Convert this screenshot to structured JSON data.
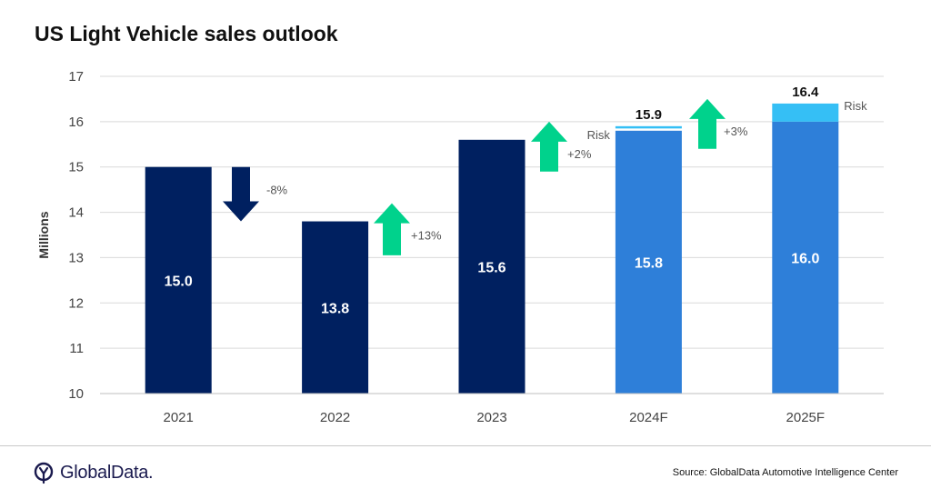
{
  "title": "US Light Vehicle sales outlook",
  "footer": {
    "brand": "GlobalData.",
    "source": "Source: GlobalData Automotive  Intelligence Center"
  },
  "colors": {
    "actual": "#002060",
    "forecast": "#2E7FD9",
    "risk": "#35BFF5",
    "arrow_up": "#00D28C",
    "arrow_down": "#002060"
  },
  "chart_data": {
    "type": "bar",
    "ylabel": "Millions",
    "ylim": [
      10,
      17
    ],
    "yticks": [
      10,
      11,
      12,
      13,
      14,
      15,
      16,
      17
    ],
    "grid": true,
    "categories": [
      "2021",
      "2022",
      "2023",
      "2024F",
      "2025F"
    ],
    "values": [
      15.0,
      13.8,
      15.6,
      15.8,
      16.0
    ],
    "value_labels": [
      "15.0",
      "13.8",
      "15.6",
      "15.8",
      "16.0"
    ],
    "risk": [
      {
        "category": "2024F",
        "from": 15.85,
        "to": 15.9,
        "total_label": "15.9",
        "label": "Risk"
      },
      {
        "category": "2025F",
        "from": 16.0,
        "to": 16.4,
        "total_label": "16.4",
        "label": "Risk"
      }
    ],
    "changes": [
      {
        "after": "2021",
        "direction": "down",
        "label": "-8%"
      },
      {
        "after": "2022",
        "direction": "up",
        "label": "+13%"
      },
      {
        "after": "2023",
        "direction": "up",
        "label": "+2%"
      },
      {
        "after": "2024F",
        "direction": "up",
        "label": "+3%"
      }
    ]
  }
}
